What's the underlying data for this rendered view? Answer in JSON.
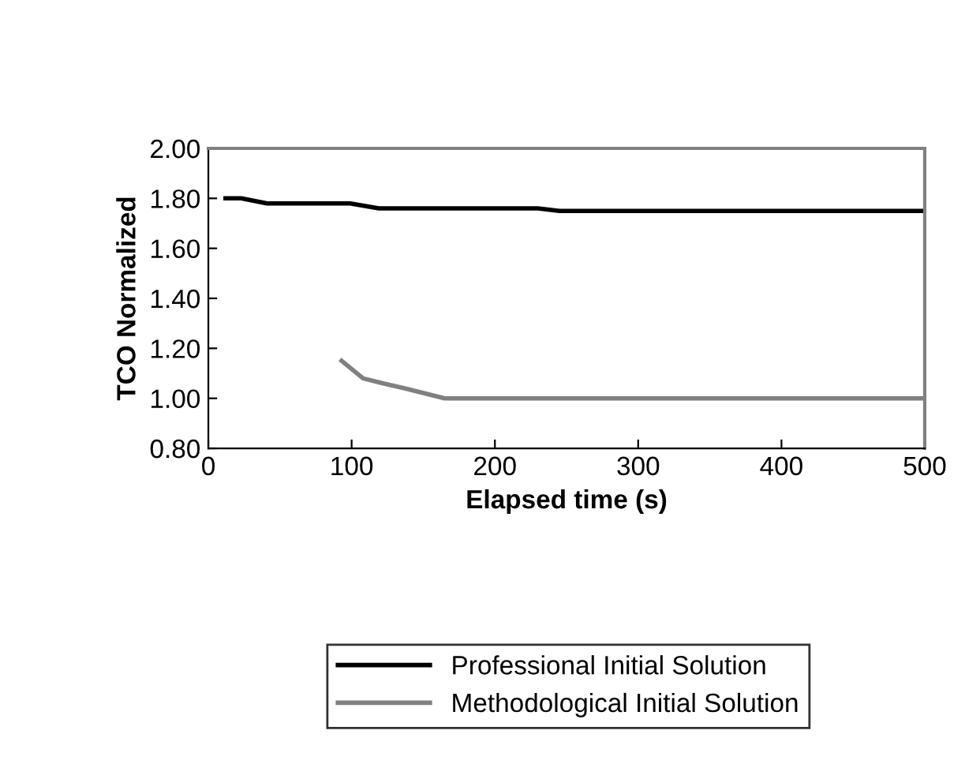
{
  "chart_data": {
    "type": "line",
    "xlabel": "Elapsed time (s)",
    "ylabel": "TCO Normalized",
    "xlim": [
      0,
      500
    ],
    "xticks": [
      0,
      100,
      200,
      300,
      400,
      500
    ],
    "ylim": [
      0.8,
      2.0
    ],
    "yticks": [
      {
        "value": 0.8,
        "label": "0.80"
      },
      {
        "value": 1.0,
        "label": "1.00"
      },
      {
        "value": 1.2,
        "label": "1.20"
      },
      {
        "value": 1.4,
        "label": "1.40"
      },
      {
        "value": 1.6,
        "label": "1.60"
      },
      {
        "value": 1.8,
        "label": "1.80"
      },
      {
        "value": 2.0,
        "label": "2.00"
      }
    ],
    "grid": false,
    "legend": "bottom",
    "marker": "none",
    "line_style": "solid",
    "series": [
      {
        "name": "Professional Initial Solution",
        "color": "#000000",
        "x": [
          12,
          23,
          41,
          99,
          119,
          230,
          245,
          500
        ],
        "values": [
          1.8,
          1.8,
          1.78,
          1.78,
          1.76,
          1.76,
          1.75,
          1.75
        ]
      },
      {
        "name": "Methodological Initial Solution",
        "color": "#808080",
        "x": [
          93,
          108,
          122,
          137,
          165,
          500
        ],
        "values": [
          1.15,
          1.08,
          1.06,
          1.04,
          1.0,
          1.0
        ]
      }
    ]
  }
}
